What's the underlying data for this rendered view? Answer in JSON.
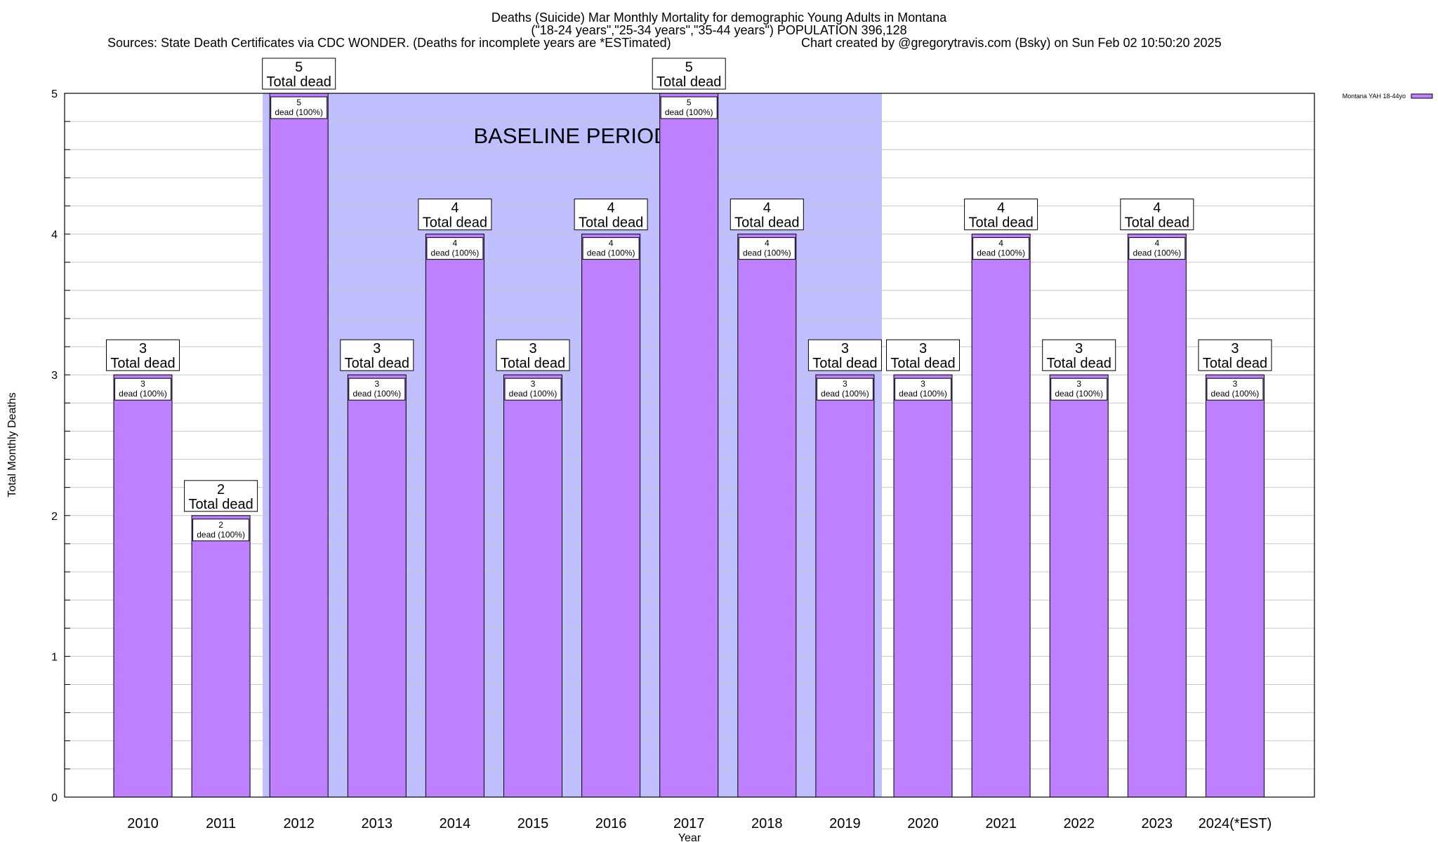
{
  "title_line1": "Deaths (Suicide) Mar Monthly Mortality for demographic Young Adults in Montana",
  "title_line2": "(\"18-24 years\",\"25-34 years\",\"35-44 years\") POPULATION 396,128",
  "sources": "Sources: State Death Certificates via CDC WONDER. (Deaths for incomplete years are *ESTimated)",
  "credit": "Chart created by @gregorytravis.com (Bsky) on Sun Feb 02 10:50:20 2025",
  "colors": {
    "bar": "#bf80ff",
    "baseline": "#bfbfff",
    "grid": "#c8c8c8"
  },
  "chart_data": {
    "type": "bar",
    "xlabel": "Year",
    "ylabel": "Total Monthly Deaths",
    "ylim": [
      0,
      5
    ],
    "yticks": [
      "0",
      "1",
      "2",
      "3",
      "4",
      "5"
    ],
    "categories": [
      "2010",
      "2011",
      "2012",
      "2013",
      "2014",
      "2015",
      "2016",
      "2017",
      "2018",
      "2019",
      "2020",
      "2021",
      "2022",
      "2023",
      "2024(*EST)"
    ],
    "series": [
      {
        "name": "Montana YAH 18-44yo",
        "values": [
          3,
          2,
          5,
          3,
          4,
          3,
          4,
          5,
          4,
          3,
          3,
          4,
          3,
          4,
          3
        ]
      }
    ],
    "total_labels": [
      "3",
      "2",
      "5",
      "3",
      "4",
      "3",
      "4",
      "5",
      "4",
      "3",
      "3",
      "4",
      "3",
      "4",
      "3"
    ],
    "total_suffix": "Total dead",
    "inner_labels": [
      "3",
      "2",
      "5",
      "3",
      "4",
      "3",
      "4",
      "5",
      "4",
      "3",
      "3",
      "4",
      "3",
      "4",
      "3"
    ],
    "inner_suffix": "dead (100%)",
    "baseline": {
      "label": "BASELINE PERIOD",
      "from": "2012",
      "to": "2019"
    },
    "legend": {
      "label": "Montana YAH 18-44yo",
      "position": "top-right"
    }
  }
}
